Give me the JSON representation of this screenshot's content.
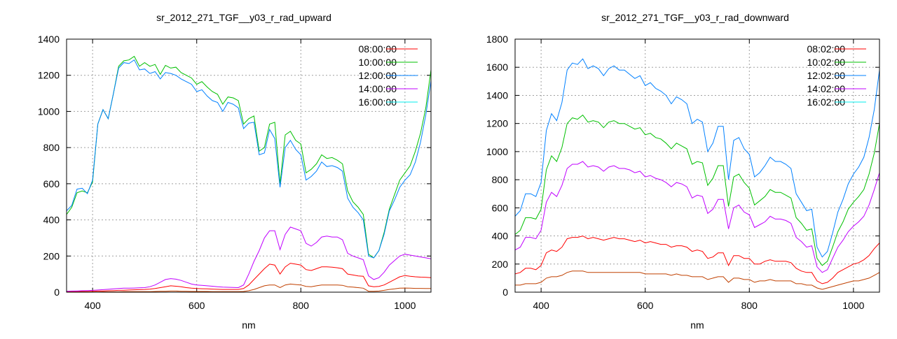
{
  "colors": {
    "08": "#ff0000",
    "10": "#00c000",
    "12": "#0080ff",
    "14": "#c000ff",
    "16_line": "#c04000",
    "16_legend": "#00eeee",
    "grid": "#a0a0a0"
  },
  "chart_data": [
    {
      "type": "line",
      "title": "sr_2012_271_TGF__y03_r_rad_upward",
      "xlabel": "nm",
      "ylabel": "",
      "xlim": [
        350,
        1050
      ],
      "ylim": [
        0,
        1400
      ],
      "xticks": [
        400,
        600,
        800,
        1000
      ],
      "yticks": [
        0,
        200,
        400,
        600,
        800,
        1000,
        1200,
        1400
      ],
      "grid": true,
      "legend_position": "top-right",
      "x_start": 350,
      "x_step": 10,
      "series": [
        {
          "name": "08:00:00",
          "color": "#ff0000",
          "legend_color": "#ff0000",
          "values": [
            2,
            3,
            3,
            4,
            4,
            5,
            6,
            7,
            8,
            9,
            10,
            11,
            12,
            13,
            14,
            15,
            17,
            20,
            25,
            30,
            35,
            33,
            30,
            25,
            22,
            20,
            19,
            18,
            17,
            16,
            15,
            15,
            15,
            15,
            20,
            40,
            70,
            100,
            130,
            155,
            150,
            100,
            140,
            160,
            155,
            150,
            125,
            120,
            130,
            140,
            140,
            138,
            135,
            130,
            100,
            95,
            90,
            88,
            35,
            30,
            32,
            40,
            55,
            70,
            85,
            92,
            88,
            85,
            83,
            82,
            80
          ]
        },
        {
          "name": "10:00:00",
          "color": "#00c000",
          "legend_color": "#00c000",
          "values": [
            430,
            470,
            550,
            560,
            550,
            610,
            930,
            1010,
            960,
            1100,
            1250,
            1280,
            1285,
            1305,
            1250,
            1270,
            1250,
            1260,
            1205,
            1255,
            1240,
            1245,
            1215,
            1200,
            1185,
            1150,
            1165,
            1135,
            1110,
            1095,
            1040,
            1080,
            1075,
            1060,
            930,
            960,
            975,
            780,
            800,
            930,
            940,
            600,
            870,
            890,
            840,
            820,
            660,
            680,
            710,
            760,
            740,
            745,
            730,
            710,
            560,
            500,
            470,
            430,
            210,
            190,
            230,
            330,
            460,
            540,
            620,
            660,
            700,
            780,
            880,
            1020,
            1230
          ]
        },
        {
          "name": "12:00:00",
          "color": "#0080ff",
          "legend_color": "#0080ff",
          "values": [
            450,
            480,
            570,
            575,
            545,
            620,
            930,
            1010,
            960,
            1100,
            1240,
            1270,
            1265,
            1285,
            1230,
            1235,
            1210,
            1220,
            1180,
            1215,
            1210,
            1200,
            1180,
            1165,
            1150,
            1110,
            1120,
            1085,
            1060,
            1050,
            1000,
            1050,
            1040,
            1020,
            905,
            935,
            940,
            760,
            770,
            900,
            850,
            580,
            800,
            840,
            790,
            760,
            620,
            640,
            670,
            720,
            695,
            700,
            690,
            670,
            520,
            470,
            440,
            400,
            200,
            190,
            230,
            320,
            450,
            510,
            580,
            620,
            650,
            720,
            830,
            980,
            1170
          ]
        },
        {
          "name": "14:00:00",
          "color": "#c000ff",
          "legend_color": "#c000ff",
          "values": [
            5,
            6,
            7,
            8,
            9,
            10,
            12,
            14,
            16,
            18,
            20,
            22,
            22,
            23,
            24,
            25,
            30,
            40,
            55,
            70,
            75,
            72,
            65,
            55,
            45,
            40,
            38,
            35,
            33,
            30,
            28,
            27,
            26,
            25,
            40,
            100,
            170,
            230,
            300,
            340,
            340,
            235,
            320,
            360,
            350,
            340,
            270,
            255,
            275,
            305,
            310,
            305,
            305,
            290,
            215,
            200,
            190,
            180,
            90,
            70,
            80,
            110,
            150,
            175,
            200,
            210,
            205,
            200,
            195,
            190,
            185
          ]
        },
        {
          "name": "16:00:00",
          "color": "#c04000",
          "legend_color": "#00eeee",
          "values": [
            0,
            0,
            0,
            1,
            1,
            1,
            1,
            2,
            2,
            2,
            2,
            3,
            3,
            3,
            3,
            3,
            3,
            4,
            5,
            5,
            6,
            6,
            5,
            5,
            4,
            4,
            4,
            4,
            3,
            3,
            3,
            3,
            3,
            3,
            4,
            8,
            15,
            25,
            35,
            40,
            40,
            25,
            40,
            45,
            42,
            40,
            32,
            30,
            35,
            40,
            40,
            40,
            40,
            38,
            30,
            28,
            25,
            22,
            5,
            5,
            6,
            10,
            15,
            18,
            22,
            23,
            22,
            21,
            21,
            20,
            20
          ]
        }
      ]
    },
    {
      "type": "line",
      "title": "sr_2012_271_TGF__y03_r_rad_downward",
      "xlabel": "nm",
      "ylabel": "",
      "xlim": [
        350,
        1050
      ],
      "ylim": [
        0,
        1800
      ],
      "xticks": [
        400,
        600,
        800,
        1000
      ],
      "yticks": [
        0,
        200,
        400,
        600,
        800,
        1000,
        1200,
        1400,
        1600,
        1800
      ],
      "grid": true,
      "legend_position": "top-right",
      "x_start": 350,
      "x_step": 10,
      "series": [
        {
          "name": "08:02:00",
          "color": "#ff0000",
          "legend_color": "#ff0000",
          "values": [
            130,
            140,
            170,
            170,
            160,
            190,
            280,
            300,
            290,
            320,
            380,
            390,
            390,
            400,
            380,
            390,
            380,
            370,
            380,
            390,
            380,
            380,
            370,
            360,
            370,
            350,
            360,
            350,
            340,
            340,
            320,
            330,
            330,
            320,
            290,
            300,
            290,
            240,
            250,
            280,
            280,
            190,
            260,
            260,
            240,
            240,
            200,
            200,
            220,
            230,
            220,
            220,
            220,
            210,
            170,
            150,
            140,
            140,
            80,
            60,
            70,
            100,
            140,
            160,
            180,
            200,
            210,
            230,
            260,
            310,
            350
          ]
        },
        {
          "name": "10:02:00",
          "color": "#00c000",
          "legend_color": "#00c000",
          "values": [
            410,
            440,
            530,
            530,
            520,
            590,
            870,
            970,
            930,
            1030,
            1200,
            1240,
            1230,
            1260,
            1210,
            1220,
            1210,
            1170,
            1210,
            1220,
            1200,
            1200,
            1180,
            1160,
            1170,
            1120,
            1130,
            1100,
            1090,
            1060,
            1020,
            1060,
            1040,
            1020,
            910,
            930,
            920,
            760,
            810,
            900,
            900,
            610,
            820,
            840,
            780,
            740,
            620,
            650,
            680,
            730,
            710,
            710,
            690,
            670,
            530,
            490,
            440,
            450,
            240,
            190,
            220,
            320,
            430,
            500,
            590,
            640,
            680,
            730,
            840,
            990,
            1200
          ]
        },
        {
          "name": "12:02:00",
          "color": "#0080ff",
          "legend_color": "#0080ff",
          "values": [
            540,
            580,
            700,
            700,
            680,
            780,
            1150,
            1270,
            1220,
            1350,
            1580,
            1630,
            1620,
            1660,
            1590,
            1610,
            1590,
            1540,
            1590,
            1610,
            1580,
            1580,
            1550,
            1520,
            1540,
            1470,
            1490,
            1450,
            1430,
            1400,
            1340,
            1390,
            1370,
            1340,
            1200,
            1230,
            1210,
            1000,
            1060,
            1180,
            1180,
            800,
            1080,
            1100,
            1020,
            980,
            820,
            850,
            900,
            960,
            930,
            930,
            910,
            880,
            700,
            640,
            580,
            590,
            320,
            250,
            290,
            420,
            570,
            660,
            770,
            840,
            890,
            960,
            1100,
            1300,
            1580
          ]
        },
        {
          "name": "14:02:00",
          "color": "#c000ff",
          "legend_color": "#c000ff",
          "values": [
            300,
            320,
            390,
            390,
            380,
            440,
            640,
            710,
            680,
            760,
            880,
            910,
            910,
            930,
            890,
            900,
            890,
            860,
            890,
            900,
            880,
            880,
            870,
            850,
            860,
            820,
            830,
            810,
            800,
            780,
            750,
            780,
            770,
            750,
            670,
            690,
            680,
            560,
            590,
            660,
            660,
            450,
            600,
            620,
            570,
            550,
            460,
            480,
            500,
            540,
            520,
            520,
            510,
            490,
            390,
            360,
            320,
            330,
            180,
            140,
            160,
            240,
            320,
            370,
            430,
            470,
            500,
            540,
            620,
            730,
            850
          ]
        },
        {
          "name": "16:02:00",
          "color": "#c04000",
          "legend_color": "#00eeee",
          "values": [
            50,
            50,
            60,
            60,
            60,
            70,
            100,
            110,
            110,
            120,
            140,
            150,
            150,
            150,
            140,
            140,
            140,
            140,
            140,
            140,
            140,
            140,
            140,
            140,
            140,
            130,
            130,
            130,
            130,
            130,
            120,
            130,
            120,
            120,
            110,
            110,
            110,
            90,
            100,
            110,
            110,
            70,
            100,
            100,
            90,
            90,
            70,
            80,
            80,
            90,
            80,
            80,
            80,
            80,
            60,
            60,
            50,
            50,
            30,
            20,
            30,
            40,
            50,
            60,
            70,
            80,
            80,
            90,
            100,
            120,
            140
          ]
        }
      ]
    }
  ]
}
